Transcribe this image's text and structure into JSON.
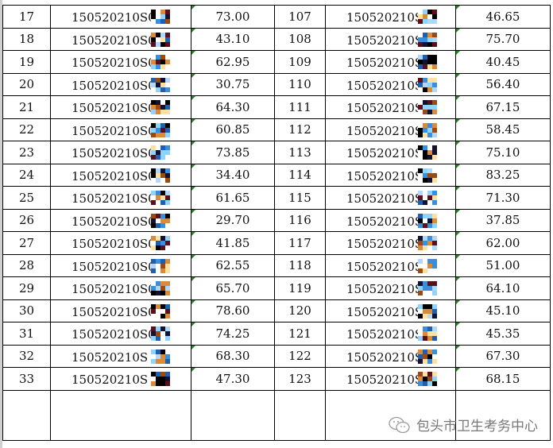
{
  "rows_left": [
    {
      "no": "17",
      "id": "150520210S0",
      "score": "73.00"
    },
    {
      "no": "18",
      "id": "150520210S0",
      "score": "43.10"
    },
    {
      "no": "19",
      "id": "150520210S0",
      "score": "62.95"
    },
    {
      "no": "20",
      "id": "150520210S0",
      "score": "30.75"
    },
    {
      "no": "21",
      "id": "150520210S0",
      "score": "64.30"
    },
    {
      "no": "22",
      "id": "150520210S0",
      "score": "60.85"
    },
    {
      "no": "23",
      "id": "150520210S0",
      "score": "73.85"
    },
    {
      "no": "24",
      "id": "150520210S0",
      "score": "34.40"
    },
    {
      "no": "25",
      "id": "150520210S0",
      "score": "61.65"
    },
    {
      "no": "26",
      "id": "150520210S0",
      "score": "29.70"
    },
    {
      "no": "27",
      "id": "150520210S0",
      "score": "41.85"
    },
    {
      "no": "28",
      "id": "150520210S0",
      "score": "62.55"
    },
    {
      "no": "29",
      "id": "150520210S0",
      "score": "65.70"
    },
    {
      "no": "30",
      "id": "150520210S0",
      "score": "78.60"
    },
    {
      "no": "31",
      "id": "150520210S0",
      "score": "74.25"
    },
    {
      "no": "32",
      "id": "150520210S",
      "score": "68.30"
    },
    {
      "no": "33",
      "id": "150520210S",
      "score": "47.30"
    }
  ],
  "rows_right": [
    {
      "no": "107",
      "id": "150520210S0",
      "score": "46.65"
    },
    {
      "no": "108",
      "id": "150520210S0",
      "score": "75.70"
    },
    {
      "no": "109",
      "id": "150520210S0",
      "score": "40.45"
    },
    {
      "no": "110",
      "id": "150520210S0",
      "score": "56.40"
    },
    {
      "no": "111",
      "id": "150520210S0",
      "score": "67.15"
    },
    {
      "no": "112",
      "id": "150520210S0",
      "score": "58.45"
    },
    {
      "no": "113",
      "id": "150520210S0",
      "score": "75.10"
    },
    {
      "no": "114",
      "id": "150520210S",
      "score": "83.25"
    },
    {
      "no": "115",
      "id": "150520210S",
      "score": "71.30"
    },
    {
      "no": "116",
      "id": "150520210S",
      "score": "37.85"
    },
    {
      "no": "117",
      "id": "150520210S",
      "score": "62.00"
    },
    {
      "no": "118",
      "id": "150520210S",
      "score": "51.00"
    },
    {
      "no": "119",
      "id": "150520210S",
      "score": "64.10"
    },
    {
      "no": "120",
      "id": "150520210S",
      "score": "45.10"
    },
    {
      "no": "121",
      "id": "150520210S",
      "score": "45.35"
    },
    {
      "no": "122",
      "id": "150520210S",
      "score": "67.30"
    },
    {
      "no": "123",
      "id": "150520210S",
      "score": "68.15"
    }
  ],
  "watermark": {
    "icon": "wechat-icon",
    "text": "包头市卫生考务中心"
  }
}
